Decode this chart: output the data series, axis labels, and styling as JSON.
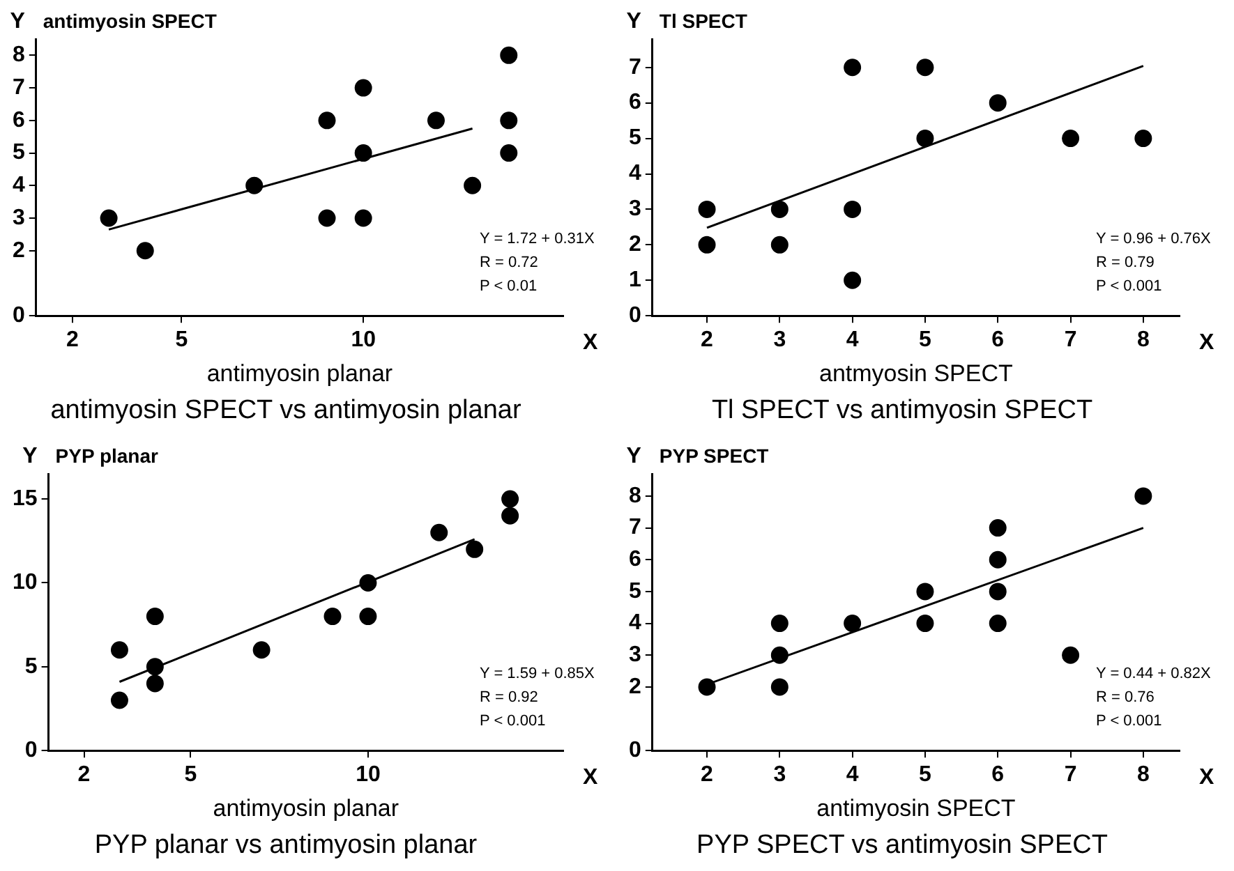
{
  "chart_data": [
    {
      "type": "scatter",
      "title": "antimyosin SPECT vs antimyosin planar",
      "xlabel": "antimyosin planar",
      "ylabel": "antimyosin SPECT",
      "annotations": [
        "Y",
        "X",
        "Y = 1.72 + 0.31X",
        "R = 0.72",
        "P < 0.01"
      ],
      "xlim": [
        1,
        15.5
      ],
      "xticks": [
        2,
        5,
        10
      ],
      "ylim": [
        0,
        8.5
      ],
      "yticks": [
        0,
        2,
        3,
        4,
        5,
        6,
        7,
        8
      ],
      "grid": false,
      "legend": false,
      "marker": "circle",
      "series": [
        {
          "color": "#000000",
          "x": [
            3,
            4,
            7,
            9,
            9,
            10,
            10,
            10,
            12,
            13,
            14,
            14,
            14
          ],
          "values": [
            3,
            2,
            4,
            6,
            3,
            7,
            5,
            3,
            6,
            4,
            8,
            6,
            5
          ]
        },
        {
          "type": "line",
          "marker": "none",
          "color": "#000000",
          "x": [
            3,
            13
          ],
          "values": [
            2.65,
            5.75
          ]
        }
      ]
    },
    {
      "type": "scatter",
      "title": "Tl SPECT vs antimyosin SPECT",
      "xlabel": "antmyosin SPECT",
      "ylabel": "Tl SPECT",
      "annotations": [
        "Y",
        "X",
        "Y = 0.96 + 0.76X",
        "R = 0.79",
        "P < 0.001"
      ],
      "xlim": [
        1.25,
        8.5
      ],
      "xticks": [
        2,
        3,
        4,
        5,
        6,
        7,
        8
      ],
      "ylim": [
        0,
        7.8
      ],
      "yticks": [
        0,
        1,
        2,
        3,
        4,
        5,
        6,
        7
      ],
      "grid": false,
      "legend": false,
      "marker": "circle",
      "series": [
        {
          "color": "#000000",
          "x": [
            2,
            2,
            3,
            3,
            4,
            4,
            4,
            5,
            5,
            6,
            7,
            8
          ],
          "values": [
            3,
            2,
            3,
            2,
            7,
            3,
            1,
            7,
            5,
            6,
            5,
            5
          ]
        },
        {
          "type": "line",
          "marker": "none",
          "color": "#000000",
          "x": [
            2,
            8
          ],
          "values": [
            2.48,
            7.04
          ]
        }
      ]
    },
    {
      "type": "scatter",
      "title": "PYP planar vs antimyosin planar",
      "xlabel": "antimyosin planar",
      "ylabel": "PYP planar",
      "annotations": [
        "Y",
        "X",
        "Y = 1.59 + 0.85X",
        "R = 0.92",
        "P < 0.001"
      ],
      "xlim": [
        1,
        15.5
      ],
      "xticks": [
        2,
        5,
        10
      ],
      "ylim": [
        0,
        16.5
      ],
      "yticks": [
        0,
        5,
        10,
        15
      ],
      "grid": false,
      "legend": false,
      "marker": "circle",
      "series": [
        {
          "color": "#000000",
          "x": [
            3,
            3,
            4,
            4,
            4,
            7,
            9,
            10,
            10,
            12,
            13,
            14,
            14
          ],
          "values": [
            6,
            3,
            8,
            5,
            4,
            6,
            8,
            10,
            8,
            13,
            12,
            15,
            14
          ]
        },
        {
          "type": "line",
          "marker": "none",
          "color": "#000000",
          "x": [
            3,
            13
          ],
          "values": [
            4.1,
            12.6
          ]
        }
      ]
    },
    {
      "type": "scatter",
      "title": "PYP SPECT vs antimyosin SPECT",
      "xlabel": "antimyosin SPECT",
      "ylabel": "PYP SPECT",
      "annotations": [
        "Y",
        "X",
        "Y = 0.44 + 0.82X",
        "R = 0.76",
        "P < 0.001"
      ],
      "xlim": [
        1.25,
        8.5
      ],
      "xticks": [
        2,
        3,
        4,
        5,
        6,
        7,
        8
      ],
      "ylim": [
        0,
        8.7
      ],
      "yticks": [
        0,
        2,
        3,
        4,
        5,
        6,
        7,
        8
      ],
      "grid": false,
      "legend": false,
      "marker": "circle",
      "series": [
        {
          "color": "#000000",
          "x": [
            2,
            3,
            3,
            3,
            4,
            5,
            5,
            6,
            6,
            6,
            6,
            7,
            8
          ],
          "values": [
            2,
            4,
            3,
            2,
            4,
            5,
            4,
            7,
            6,
            5,
            4,
            3,
            8
          ]
        },
        {
          "type": "line",
          "marker": "none",
          "color": "#000000",
          "x": [
            2,
            8
          ],
          "values": [
            2.08,
            7.0
          ]
        }
      ]
    }
  ]
}
